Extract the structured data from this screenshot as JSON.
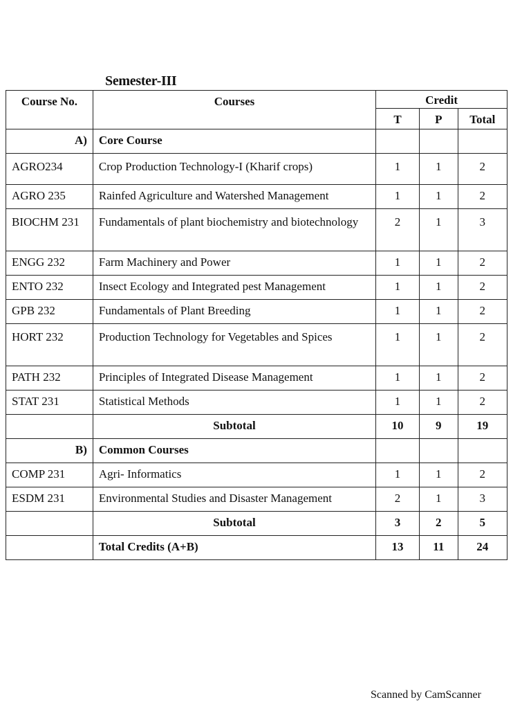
{
  "title": "Semester-III",
  "headers": {
    "course_no": "Course No.",
    "courses": "Courses",
    "credit": "Credit",
    "t": "T",
    "p": "P",
    "total": "Total"
  },
  "sections": [
    {
      "label": "A)",
      "name": "Core Course",
      "rows": [
        {
          "code": "AGRO234",
          "course": "Crop Production Technology-I (Kharif crops)",
          "t": "1",
          "p": "1",
          "total": "2"
        },
        {
          "code": "AGRO 235",
          "course": "Rainfed Agriculture and Watershed Management",
          "t": "1",
          "p": "1",
          "total": "2"
        },
        {
          "code": "BIOCHM 231",
          "course": "Fundamentals of plant biochemistry and biotechnology",
          "t": "2",
          "p": "1",
          "total": "3"
        },
        {
          "code": "ENGG 232",
          "course": "Farm  Machinery and Power",
          "t": "1",
          "p": "1",
          "total": "2"
        },
        {
          "code": "ENTO 232",
          "course": "Insect Ecology and Integrated pest Management",
          "t": "1",
          "p": "1",
          "total": "2"
        },
        {
          "code": "GPB 232",
          "course": "Fundamentals of Plant Breeding",
          "t": "1",
          "p": "1",
          "total": "2"
        },
        {
          "code": "HORT 232",
          "course": "Production Technology for Vegetables and Spices",
          "t": "1",
          "p": "1",
          "total": "2"
        },
        {
          "code": "PATH 232",
          "course": "Principles of Integrated Disease Management",
          "t": "1",
          "p": "1",
          "total": "2"
        },
        {
          "code": "STAT 231",
          "course": "Statistical Methods",
          "t": "1",
          "p": "1",
          "total": "2"
        }
      ],
      "subtotal": {
        "label": "Subtotal",
        "t": "10",
        "p": "9",
        "total": "19"
      }
    },
    {
      "label": "B)",
      "name": "Common Courses",
      "rows": [
        {
          "code": "COMP 231",
          "course": "Agri- Informatics",
          "t": "1",
          "p": "1",
          "total": "2"
        },
        {
          "code": "ESDM 231",
          "course": "Environmental Studies and Disaster Management",
          "t": "2",
          "p": "1",
          "total": "3"
        }
      ],
      "subtotal": {
        "label": "Subtotal",
        "t": "3",
        "p": "2",
        "total": "5"
      }
    }
  ],
  "grand_total": {
    "label": "Total Credits (A+B)",
    "t": "13",
    "p": "11",
    "total": "24"
  },
  "footer": "Scanned by CamScanner"
}
